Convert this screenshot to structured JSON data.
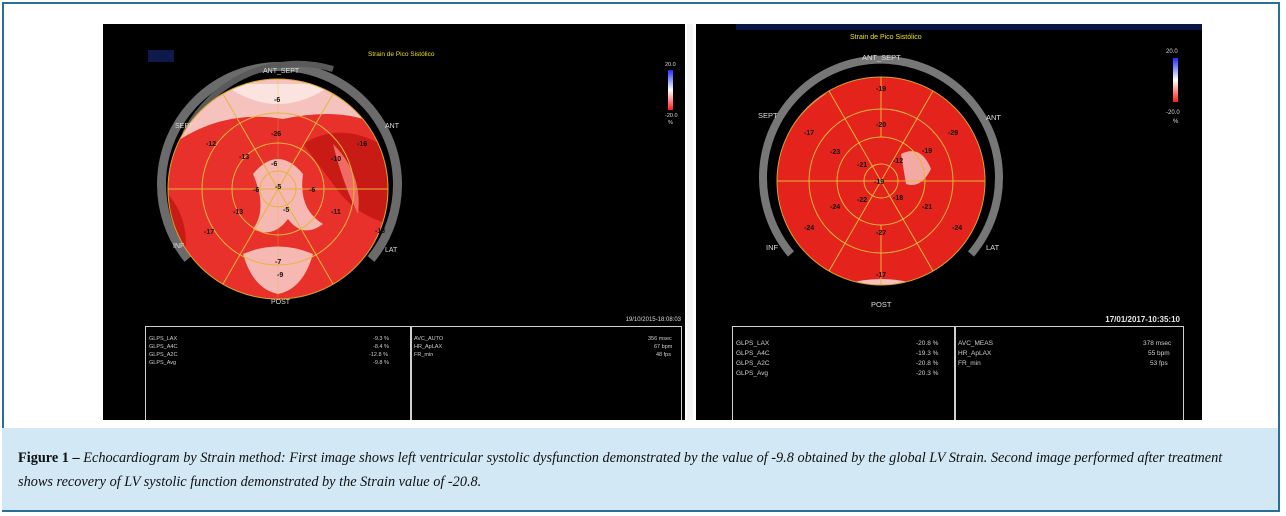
{
  "figure": {
    "panel_left": {
      "title": "Strain de Pico Sistólico",
      "scale_max": "20.0",
      "scale_min": "-20.0",
      "scale_unit": "%",
      "segment_labels": {
        "ant_sept": "ANT_SEPT",
        "sept": "SEPT",
        "ant": "ANT",
        "inf": "INF",
        "lat": "LAT",
        "post": "POST"
      },
      "values": {
        "basal": [
          "-6",
          "-16",
          "-13",
          "-9",
          "-17",
          "-12"
        ],
        "mid": [
          "-26",
          "-10",
          "-11",
          "-7",
          "-13",
          "-13"
        ],
        "apical": [
          "-6",
          "-6",
          "-5",
          "-6"
        ],
        "apex": "-5"
      },
      "timestamp": "19/10/2015-18:08:03",
      "table_left": [
        {
          "label": "GLPS_LAX",
          "value": "-9.3 %"
        },
        {
          "label": "GLPS_A4C",
          "value": "-8.4 %"
        },
        {
          "label": "GLPS_A2C",
          "value": "-12.8 %"
        },
        {
          "label": "GLPS_Avg",
          "value": "-9.8 %"
        }
      ],
      "table_right": [
        {
          "label": "AVC_AUTO",
          "value": "356 msec"
        },
        {
          "label": "HR_ApLAX",
          "value": "67 bpm"
        },
        {
          "label": "FR_min",
          "value": "48 fps"
        }
      ]
    },
    "panel_right": {
      "title": "Strain de Pico Sistólico",
      "scale_max": "20.0",
      "scale_min": "-20.0",
      "scale_unit": "%",
      "segment_labels": {
        "ant_sept": "ANT_SEPT",
        "sept": "SEPT",
        "ant": "ANT",
        "inf": "INF",
        "lat": "LAT",
        "post": "POST"
      },
      "values": {
        "basal": [
          "-19",
          "-29",
          "-24",
          "-17",
          "-24",
          "-17"
        ],
        "mid": [
          "-20",
          "-19",
          "-21",
          "-27",
          "-24",
          "-23"
        ],
        "apical": [
          "-21",
          "-12",
          "-18",
          "-22"
        ],
        "apex": "-19"
      },
      "timestamp": "17/01/2017-10:35:10",
      "table_left": [
        {
          "label": "GLPS_LAX",
          "value": "-20.8 %"
        },
        {
          "label": "GLPS_A4C",
          "value": "-19.3 %"
        },
        {
          "label": "GLPS_A2C",
          "value": "-20.8 %"
        },
        {
          "label": "GLPS_Avg",
          "value": "-20.3 %"
        }
      ],
      "table_right": [
        {
          "label": "AVC_MEAS",
          "value": "378 msec"
        },
        {
          "label": "HR_ApLAX",
          "value": "55 bpm"
        },
        {
          "label": "FR_min",
          "value": "53 fps"
        }
      ]
    },
    "caption": {
      "label": "Figure 1 –",
      "text": " Echocardiogram by Strain method: First image shows left ventricular systolic dysfunction demonstrated by the value of -9.8 obtained by the global LV Strain. Second image performed after treatment shows recovery of LV systolic function demonstrated by the Strain value of -20.8."
    }
  }
}
